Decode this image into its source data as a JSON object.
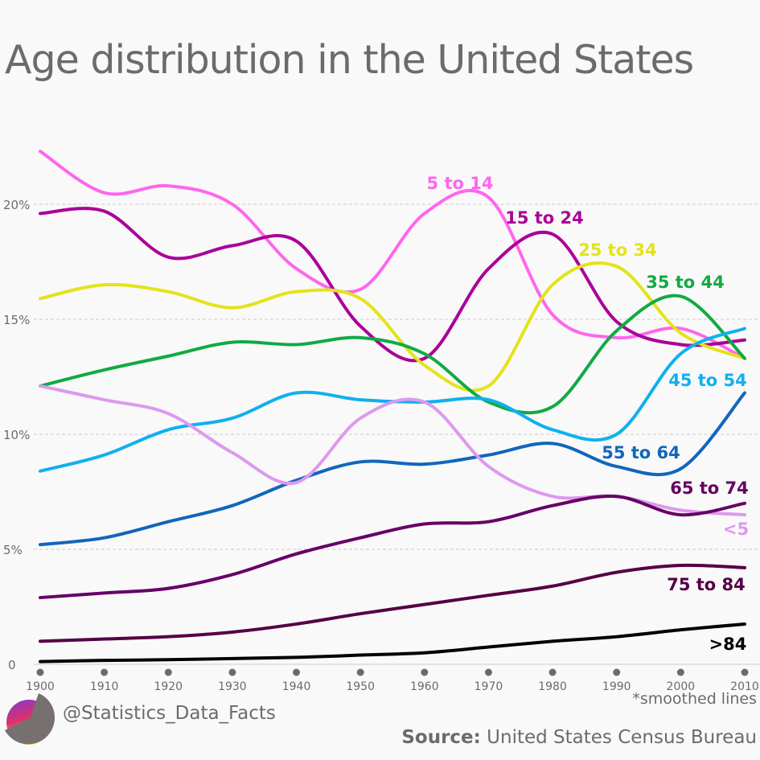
{
  "title": "Age distribution in the United States",
  "handle": "@Statistics_Data_Facts",
  "note": "*smoothed lines",
  "source": {
    "label": "Source:",
    "text": "United States Census Bureau"
  },
  "chart_data": {
    "type": "line",
    "title": "Age distribution in the United States",
    "x": [
      1900,
      1910,
      1920,
      1930,
      1940,
      1950,
      1960,
      1970,
      1980,
      1990,
      2000,
      2010
    ],
    "xlim": [
      1900,
      2010
    ],
    "ylim": [
      0,
      22.5
    ],
    "yticks": [
      0,
      5,
      10,
      15,
      20
    ],
    "ytick_labels": [
      "0",
      "5%",
      "10%",
      "15%",
      "20%"
    ],
    "xtick_labels": [
      "1900",
      "1910",
      "1920",
      "1930",
      "1940",
      "1950",
      "1960",
      "1970",
      "1980",
      "1990",
      "2000",
      "2010"
    ],
    "grid": "horizontal dashed",
    "legend": "inline labels at right end of lines",
    "series": [
      {
        "name": "5 to 14",
        "color": "#ff66ee",
        "values": [
          22.3,
          20.5,
          20.8,
          20.0,
          17.2,
          16.3,
          19.6,
          20.3,
          15.2,
          14.2,
          14.6,
          13.3
        ]
      },
      {
        "name": "15 to 24",
        "color": "#aa0099",
        "values": [
          19.6,
          19.7,
          17.7,
          18.2,
          18.4,
          14.7,
          13.3,
          17.2,
          18.7,
          14.9,
          13.9,
          14.1
        ]
      },
      {
        "name": "25 to 34",
        "color": "#e3e31a",
        "values": [
          15.9,
          16.5,
          16.2,
          15.5,
          16.2,
          15.9,
          13.0,
          12.1,
          16.5,
          17.3,
          14.4,
          13.3
        ]
      },
      {
        "name": "35 to 44",
        "color": "#11aa44",
        "values": [
          12.1,
          12.8,
          13.4,
          14.0,
          13.9,
          14.2,
          13.5,
          11.4,
          11.2,
          14.5,
          16.0,
          13.3
        ]
      },
      {
        "name": "45 to 54",
        "color": "#11b0ee",
        "values": [
          8.4,
          9.1,
          10.2,
          10.7,
          11.8,
          11.5,
          11.4,
          11.5,
          10.2,
          10.0,
          13.5,
          14.6
        ]
      },
      {
        "name": "55 to 64",
        "color": "#1166bb",
        "values": [
          5.2,
          5.5,
          6.2,
          6.9,
          8.0,
          8.8,
          8.7,
          9.1,
          9.6,
          8.6,
          8.5,
          11.8
        ]
      },
      {
        "name": "<5",
        "color": "#dd99ee",
        "values": [
          12.1,
          11.5,
          10.9,
          9.2,
          7.9,
          10.7,
          11.4,
          8.6,
          7.3,
          7.3,
          6.7,
          6.5
        ]
      },
      {
        "name": "65 to 74",
        "color": "#660066",
        "values": [
          2.9,
          3.1,
          3.3,
          3.9,
          4.8,
          5.5,
          6.1,
          6.2,
          6.9,
          7.3,
          6.5,
          7.0
        ]
      },
      {
        "name": "75 to 84",
        "color": "#550044",
        "values": [
          1.0,
          1.1,
          1.2,
          1.4,
          1.75,
          2.2,
          2.6,
          3.0,
          3.4,
          4.0,
          4.3,
          4.2
        ]
      },
      {
        "name": ">84",
        "color": "#000000",
        "values": [
          0.12,
          0.17,
          0.2,
          0.25,
          0.3,
          0.4,
          0.5,
          0.75,
          1.0,
          1.2,
          1.5,
          1.75
        ]
      }
    ]
  }
}
